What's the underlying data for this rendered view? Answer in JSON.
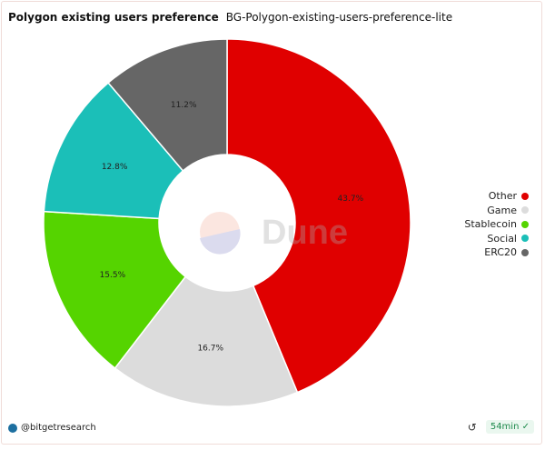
{
  "header": {
    "title": "Polygon existing users preference",
    "query_name": "BG-Polygon-existing-users-preference-lite"
  },
  "chart_data": {
    "type": "pie",
    "donut": true,
    "title": "Polygon existing users preference",
    "categories": [
      "Other",
      "Game",
      "Stablecoin",
      "Social",
      "ERC20"
    ],
    "values": [
      43.7,
      16.7,
      15.5,
      12.8,
      11.2
    ],
    "labels": [
      "43.7%",
      "16.7%",
      "15.5%",
      "12.8%",
      "11.2%"
    ],
    "colors": [
      "#e00000",
      "#dcdcdc",
      "#55d400",
      "#1bbfb8",
      "#666666"
    ],
    "legend_placement": "right"
  },
  "watermark": "Dune",
  "footer": {
    "author": "@bitgetresearch",
    "age": "54min",
    "refresh_icon": "refresh-icon",
    "status_icon": "check-circle-icon"
  }
}
